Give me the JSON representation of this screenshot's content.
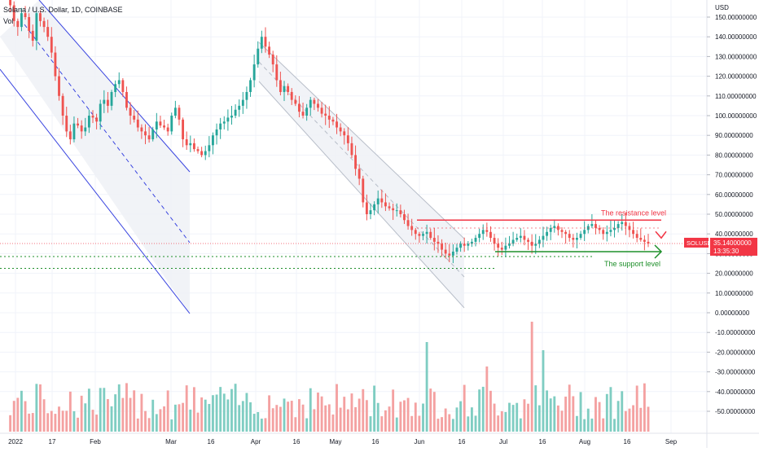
{
  "header": {
    "title": "Solana / U.S. Dollar, 1D, COINBASE",
    "vol_label": "Vol"
  },
  "price_axis": {
    "currency": "USD",
    "ticks": [
      150,
      140,
      130,
      120,
      110,
      100,
      90,
      80,
      70,
      60,
      50,
      40,
      30,
      20,
      10,
      0,
      -10,
      -20,
      -30,
      -40,
      -50
    ],
    "decimals": 8
  },
  "time_axis": {
    "labels": [
      "2022",
      "17",
      "Feb",
      "Mar",
      "16",
      "Apr",
      "16",
      "May",
      "16",
      "Jun",
      "16",
      "Jul",
      "16",
      "Aug",
      "16",
      "Sep"
    ]
  },
  "symbol_tag": {
    "symbol": "SOLUSD",
    "price": "35.14000000",
    "countdown": "13:35:30",
    "color": "#f23645"
  },
  "annotations": {
    "resistance_label": "The resistance level",
    "support_label": "The support level",
    "resistance_color": "#f23645",
    "support_color": "#1e8f2a"
  },
  "colors": {
    "up": "#26a69a",
    "down": "#ef5350",
    "vol_up": "#7fcdc2",
    "vol_down": "#f4a1a1",
    "channel": "#3a45e0"
  },
  "chart_data": {
    "type": "candlestick",
    "ylim": [
      -55,
      155
    ],
    "resistance": 47,
    "support": 31,
    "support_lines": [
      28.5,
      22.5
    ],
    "last_price": 35.14,
    "closes": [
      169,
      156,
      148,
      145,
      152,
      150,
      143,
      138,
      152,
      148,
      145,
      140,
      132,
      120,
      110,
      100,
      92,
      88,
      96,
      95,
      92,
      94,
      100,
      99,
      97,
      106,
      108,
      105,
      112,
      116,
      118,
      112,
      104,
      100,
      98,
      94,
      92,
      90,
      88,
      93,
      97,
      95,
      94,
      92,
      100,
      104,
      98,
      88,
      85,
      86,
      83,
      82,
      80,
      82,
      85,
      90,
      93,
      96,
      97,
      99,
      100,
      103,
      105,
      108,
      112,
      118,
      126,
      134,
      140,
      135,
      131,
      126,
      118,
      112,
      115,
      112,
      108,
      106,
      102,
      100,
      104,
      108,
      106,
      104,
      101,
      100,
      98,
      97,
      94,
      92,
      90,
      86,
      80,
      73,
      68,
      56,
      50,
      52,
      55,
      58,
      56,
      54,
      53,
      52,
      52,
      50,
      47,
      44,
      42,
      40,
      39,
      40,
      41,
      38,
      36,
      35,
      32,
      30,
      29,
      31,
      33,
      35,
      34,
      35,
      36,
      38,
      40,
      42,
      41,
      38,
      35,
      33,
      32,
      34,
      35,
      37,
      38,
      39,
      37,
      36,
      34,
      35,
      37,
      39,
      41,
      43,
      44,
      42,
      41,
      40,
      38,
      37,
      38,
      40,
      42,
      44,
      45,
      43,
      42,
      40,
      41,
      42,
      43,
      45,
      46,
      44,
      42,
      40,
      38,
      37,
      36,
      35.14
    ]
  }
}
